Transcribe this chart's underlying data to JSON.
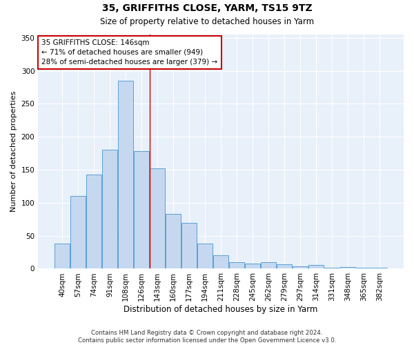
{
  "title": "35, GRIFFITHS CLOSE, YARM, TS15 9TZ",
  "subtitle": "Size of property relative to detached houses in Yarm",
  "xlabel": "Distribution of detached houses by size in Yarm",
  "ylabel": "Number of detached properties",
  "bar_labels": [
    "40sqm",
    "57sqm",
    "74sqm",
    "91sqm",
    "108sqm",
    "126sqm",
    "143sqm",
    "160sqm",
    "177sqm",
    "194sqm",
    "211sqm",
    "228sqm",
    "245sqm",
    "262sqm",
    "279sqm",
    "297sqm",
    "314sqm",
    "331sqm",
    "348sqm",
    "365sqm",
    "382sqm"
  ],
  "bar_values": [
    38,
    110,
    143,
    180,
    285,
    178,
    152,
    83,
    70,
    38,
    20,
    10,
    8,
    10,
    7,
    4,
    6,
    2,
    3,
    2,
    2
  ],
  "bar_color": "#c5d8f0",
  "bar_edge_color": "#5a9fd4",
  "vline_x": 5.52,
  "vline_color": "#cc0000",
  "annotation_text": "35 GRIFFITHS CLOSE: 146sqm\n← 71% of detached houses are smaller (949)\n28% of semi-detached houses are larger (379) →",
  "annotation_box_edgecolor": "#cc0000",
  "background_color": "#e8f0fa",
  "ylim": [
    0,
    355
  ],
  "yticks": [
    0,
    50,
    100,
    150,
    200,
    250,
    300,
    350
  ],
  "footer_line1": "Contains HM Land Registry data © Crown copyright and database right 2024.",
  "footer_line2": "Contains public sector information licensed under the Open Government Licence v3.0."
}
